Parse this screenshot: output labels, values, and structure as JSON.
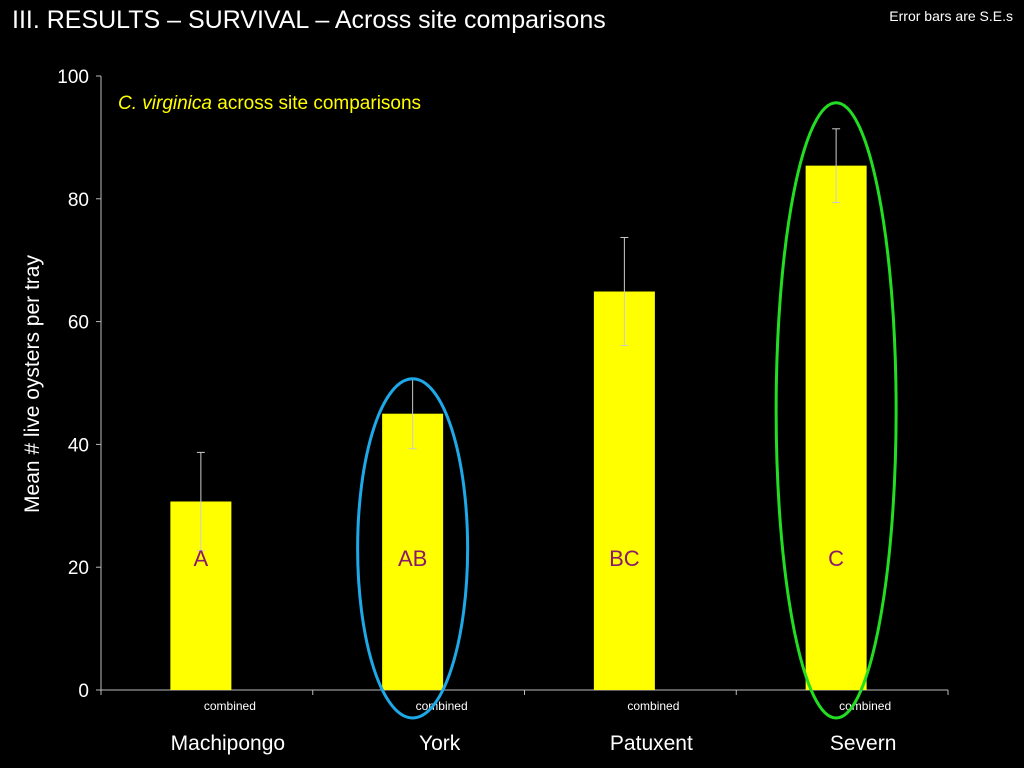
{
  "slide": {
    "title": "III.  RESULTS –  SURVIVAL – Across site comparisons",
    "note": "Error bars are S.E.s"
  },
  "colors": {
    "background": "#000000",
    "bar": "#ffff00",
    "letters": "#8b1a6b",
    "subtitle": "#ffff00",
    "axis": "#bbbbbb",
    "york_ellipse": "#1ea8e8",
    "severn_ellipse": "#22dd22"
  },
  "chart_data": {
    "type": "bar",
    "subtitle_italic": "C. virginica",
    "subtitle_rest": " across site comparisons",
    "ylabel": "Mean # live oysters per tray",
    "ylim": [
      0,
      100
    ],
    "yticks": [
      0,
      20,
      40,
      60,
      80,
      100
    ],
    "grid": false,
    "sublabel": "combined",
    "categories": [
      "Machipongo",
      "York",
      "Patuxent",
      "Severn"
    ],
    "values": [
      30.7,
      45,
      64.9,
      85.4
    ],
    "errors": [
      8,
      5.7,
      8.8,
      6
    ],
    "letters": [
      "A",
      "AB",
      "BC",
      "C"
    ],
    "highlighted": [
      {
        "category": "York",
        "color": "blue"
      },
      {
        "category": "Severn",
        "color": "green"
      }
    ]
  }
}
